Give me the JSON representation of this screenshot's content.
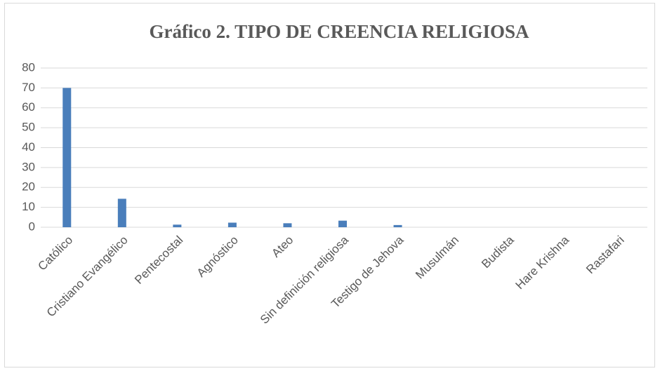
{
  "chart_data": {
    "type": "bar",
    "title": "Gráfico 2. TIPO DE CREENCIA RELIGIOSA",
    "categories": [
      "Católico",
      "Cristiano Evangélico",
      "Pentecostal",
      "Agnóstico",
      "Ateo",
      "Sin definición religiosa",
      "Testigo de Jehova",
      "Musulmán",
      "Budista",
      "Hare Krishna",
      "Rastafari"
    ],
    "values": [
      70,
      14.3,
      1.3,
      2.3,
      2,
      3.3,
      1.1,
      0,
      0,
      0,
      0
    ],
    "color": "#4a7ebb",
    "ylim": [
      0,
      80
    ],
    "yticks": [
      0,
      10,
      20,
      30,
      40,
      50,
      60,
      70,
      80
    ],
    "grid": true
  }
}
